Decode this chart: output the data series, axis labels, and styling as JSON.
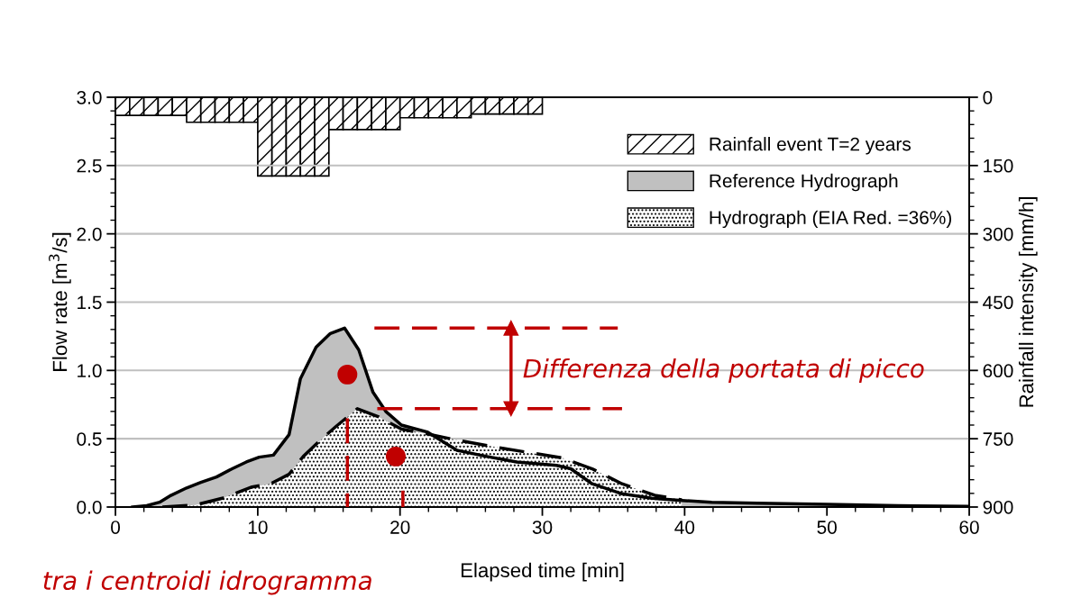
{
  "chart_data": {
    "type": "area",
    "xlabel": "Elapsed time [min]",
    "ylabel": "Flow rate [m$^{3}$/s]",
    "y2label": "Rainfall intensity [mm/h]",
    "xlim": [
      0,
      60
    ],
    "xticks": [
      0,
      10,
      20,
      30,
      40,
      50,
      60
    ],
    "ylim": [
      0,
      3.0
    ],
    "yticks": [
      {
        "value": 0,
        "label": "0.0"
      },
      {
        "value": 0.5,
        "label": "0.5"
      },
      {
        "value": 1.0,
        "label": "1.0"
      },
      {
        "value": 1.5,
        "label": "1.5"
      },
      {
        "value": 2.0,
        "label": "2.0"
      },
      {
        "value": 2.5,
        "label": "2.5"
      },
      {
        "value": 3.0,
        "label": "3.0"
      }
    ],
    "y2lim": [
      900,
      0
    ],
    "y2ticks": [
      0,
      150,
      300,
      450,
      600,
      750,
      900
    ],
    "grid": "y",
    "legend": "top right",
    "series": [
      {
        "type": "bar",
        "axis": "y2",
        "name": "Rainfall event T=2 years",
        "color": "#000000",
        "x": [
          0.5,
          1.5,
          2.5,
          3.5,
          4.5,
          5.5,
          6.5,
          7.5,
          8.5,
          9.5,
          10.5,
          11.5,
          12.5,
          13.5,
          14.5,
          15.5,
          16.5,
          17.5,
          18.5,
          19.5,
          20.5,
          21.5,
          22.5,
          23.5,
          24.5,
          25.5,
          26.5,
          27.5,
          28.5,
          29.5
        ],
        "values": [
          40,
          40,
          40,
          40,
          40,
          55,
          55,
          55,
          55,
          55,
          173,
          173,
          173,
          173,
          173,
          71,
          71,
          71,
          71,
          71,
          45,
          45,
          45,
          45,
          45,
          37,
          37,
          37,
          37,
          37
        ]
      },
      {
        "name": "Reference Hydrograph",
        "color": "#c0c0c0",
        "line_style": "solid",
        "x": [
          1.2,
          2.2,
          3.1,
          3.9,
          5.0,
          6.0,
          7.1,
          8.2,
          9.2,
          10.1,
          11.1,
          12.2,
          13.0,
          14.1,
          15.1,
          16.1,
          17.1,
          18.1,
          19.0,
          20.1,
          21.9,
          24.0,
          26.1,
          28.2,
          31.0,
          32.0,
          33.5,
          35.6,
          37.7,
          39.8,
          41.9,
          45.1,
          50.0,
          55.0,
          60.0
        ],
        "values": [
          0,
          0.01,
          0.035,
          0.085,
          0.14,
          0.18,
          0.22,
          0.28,
          0.33,
          0.365,
          0.38,
          0.53,
          0.94,
          1.17,
          1.27,
          1.31,
          1.15,
          0.84,
          0.7,
          0.6,
          0.55,
          0.415,
          0.37,
          0.33,
          0.305,
          0.28,
          0.17,
          0.097,
          0.064,
          0.048,
          0.035,
          0.028,
          0.02,
          0.01,
          0.005
        ]
      },
      {
        "name": "Hydrograph (EIA Red. =36%)",
        "color": "#ffffff",
        "line_style": "dashed",
        "x": [
          3.3,
          5.6,
          7.5,
          9.6,
          10.9,
          12.2,
          13.2,
          14.3,
          15.5,
          17.0,
          18.5,
          20.1,
          21.9,
          24.0,
          27.2,
          31.4,
          33.5,
          35.6,
          37.9,
          39.8
        ],
        "values": [
          0,
          0.015,
          0.064,
          0.147,
          0.17,
          0.24,
          0.37,
          0.48,
          0.59,
          0.72,
          0.66,
          0.57,
          0.536,
          0.49,
          0.43,
          0.36,
          0.28,
          0.17,
          0.086,
          0.053
        ]
      },
      {
        "type": "scatter",
        "color": "#c00000",
        "marker": "circle",
        "x": [
          16.3,
          19.7
        ],
        "values": [
          0.97,
          0.37
        ]
      },
      {
        "type": "line",
        "color": "#c00000",
        "line_style": "dashed",
        "x": [
          18.2,
          35.3
        ],
        "values": [
          1.31,
          1.31
        ]
      },
      {
        "type": "line",
        "color": "#c00000",
        "line_style": "dashed",
        "x": [
          18.4,
          35.6
        ],
        "values": [
          0.72,
          0.72
        ]
      },
      {
        "type": "line",
        "color": "#c00000",
        "line_style": "dashed",
        "x": [
          16.3,
          16.3
        ],
        "values": [
          0.65,
          0
        ]
      },
      {
        "type": "line",
        "color": "#c00000",
        "line_style": "dashed",
        "x": [
          20.2,
          20.2
        ],
        "values": [
          0.12,
          0
        ]
      },
      {
        "type": "line",
        "color": "#c00000",
        "line_style": "solid",
        "marker": "triangle",
        "x": [
          27.8,
          27.8
        ],
        "values": [
          1.31,
          0.72
        ]
      }
    ],
    "annotations": [
      "Differenza della portata di picco",
      "tra i centroidi idrogramma"
    ]
  }
}
